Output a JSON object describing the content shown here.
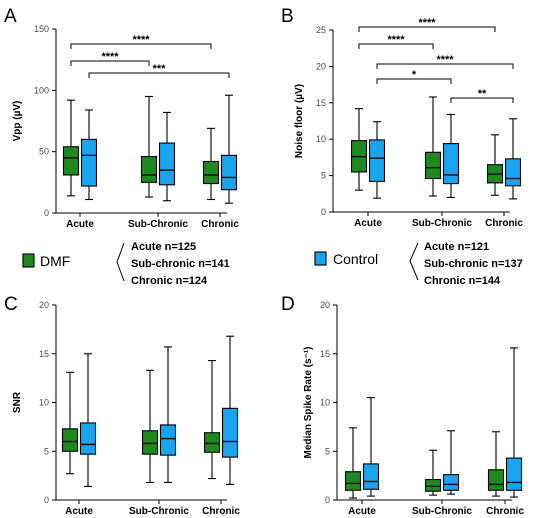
{
  "groups": [
    {
      "name": "DMF",
      "color": "#1e8a1e",
      "n_lines": [
        "Acute n=125",
        "Sub-chronic n=141",
        "Chronic n=124"
      ]
    },
    {
      "name": "Control",
      "color": "#1aa3ef",
      "n_lines": [
        "Acute n=121",
        "Sub-chronic n=137",
        "Chronic n=144"
      ]
    }
  ],
  "chart_data": [
    {
      "panel": "A",
      "type": "box",
      "ylabel": "Vpp  (µV)",
      "ylim": [
        0,
        150
      ],
      "yticks": [
        0,
        50,
        100,
        150
      ],
      "categories": [
        "Acute",
        "Sub-Chronic",
        "Chronic"
      ],
      "series": [
        {
          "name": "DMF",
          "boxes": [
            {
              "min": 14,
              "q1": 31,
              "median": 45,
              "q3": 54,
              "max": 92
            },
            {
              "min": 13,
              "q1": 25,
              "median": 31,
              "q3": 46,
              "max": 95
            },
            {
              "min": 11,
              "q1": 24,
              "median": 31,
              "q3": 42,
              "max": 69
            }
          ]
        },
        {
          "name": "Control",
          "boxes": [
            {
              "min": 11,
              "q1": 22,
              "median": 47,
              "q3": 60,
              "max": 84
            },
            {
              "min": 10,
              "q1": 23,
              "median": 35,
              "q3": 57,
              "max": 82
            },
            {
              "min": 8,
              "q1": 19,
              "median": 29,
              "q3": 47,
              "max": 96
            }
          ]
        }
      ],
      "significance": [
        {
          "label": "****",
          "from": [
            0,
            0
          ],
          "to": [
            2,
            0
          ]
        },
        {
          "label": "****",
          "from": [
            0,
            0
          ],
          "to": [
            1,
            0
          ]
        },
        {
          "label": "***",
          "from": [
            0,
            1
          ],
          "to": [
            2,
            1
          ]
        }
      ]
    },
    {
      "panel": "B",
      "type": "box",
      "ylabel": "Noise floor (µV)",
      "ylim": [
        0,
        25
      ],
      "yticks": [
        0,
        5,
        10,
        15,
        20,
        25
      ],
      "categories": [
        "Acute",
        "Sub-Chronic",
        "Chronic"
      ],
      "series": [
        {
          "name": "DMF",
          "boxes": [
            {
              "min": 3.0,
              "q1": 5.5,
              "median": 7.6,
              "q3": 9.8,
              "max": 14.2
            },
            {
              "min": 2.2,
              "q1": 4.6,
              "median": 6.1,
              "q3": 8.2,
              "max": 15.8
            },
            {
              "min": 2.3,
              "q1": 4.0,
              "median": 5.2,
              "q3": 6.5,
              "max": 10.6
            }
          ]
        },
        {
          "name": "Control",
          "boxes": [
            {
              "min": 1.9,
              "q1": 4.2,
              "median": 7.4,
              "q3": 9.9,
              "max": 12.4
            },
            {
              "min": 2.0,
              "q1": 3.9,
              "median": 5.1,
              "q3": 9.4,
              "max": 13.4
            },
            {
              "min": 1.8,
              "q1": 3.6,
              "median": 4.6,
              "q3": 7.3,
              "max": 12.8
            }
          ]
        }
      ],
      "significance": [
        {
          "label": "****",
          "from": [
            0,
            0
          ],
          "to": [
            2,
            0
          ]
        },
        {
          "label": "****",
          "from": [
            0,
            0
          ],
          "to": [
            1,
            0
          ]
        },
        {
          "label": "****",
          "from": [
            0,
            1
          ],
          "to": [
            2,
            1
          ]
        },
        {
          "label": "*",
          "from": [
            0,
            1
          ],
          "to": [
            1,
            1
          ]
        },
        {
          "label": "**",
          "from": [
            1,
            1
          ],
          "to": [
            2,
            1
          ]
        }
      ]
    },
    {
      "panel": "C",
      "type": "box",
      "ylabel": "SNR",
      "ylim": [
        0,
        20
      ],
      "yticks": [
        0,
        5,
        10,
        15,
        20
      ],
      "categories": [
        "Acute",
        "Sub-Chronic",
        "Chronic"
      ],
      "series": [
        {
          "name": "DMF",
          "boxes": [
            {
              "min": 2.7,
              "q1": 5.0,
              "median": 6.0,
              "q3": 7.3,
              "max": 13.1
            },
            {
              "min": 1.8,
              "q1": 4.7,
              "median": 5.8,
              "q3": 7.1,
              "max": 13.3
            },
            {
              "min": 2.2,
              "q1": 4.9,
              "median": 5.8,
              "q3": 6.9,
              "max": 14.3
            }
          ]
        },
        {
          "name": "Control",
          "boxes": [
            {
              "min": 1.4,
              "q1": 4.7,
              "median": 5.7,
              "q3": 7.9,
              "max": 15.0
            },
            {
              "min": 1.8,
              "q1": 4.6,
              "median": 6.3,
              "q3": 7.7,
              "max": 15.7
            },
            {
              "min": 1.6,
              "q1": 4.4,
              "median": 6.0,
              "q3": 9.4,
              "max": 16.8
            }
          ]
        }
      ]
    },
    {
      "panel": "D",
      "type": "box",
      "ylabel": "Median Spike Rate  (s⁻¹)",
      "ylim": [
        0,
        20
      ],
      "yticks": [
        0,
        5,
        10,
        15,
        20
      ],
      "categories": [
        "Acute",
        "Sub-Chronic",
        "Chronic"
      ],
      "series": [
        {
          "name": "DMF",
          "boxes": [
            {
              "min": 0.2,
              "q1": 1.0,
              "median": 1.7,
              "q3": 2.9,
              "max": 7.4
            },
            {
              "min": 0.5,
              "q1": 0.9,
              "median": 1.4,
              "q3": 2.1,
              "max": 5.1
            },
            {
              "min": 0.4,
              "q1": 1.0,
              "median": 1.6,
              "q3": 3.1,
              "max": 7.0
            }
          ]
        },
        {
          "name": "Control",
          "boxes": [
            {
              "min": 0.4,
              "q1": 1.1,
              "median": 1.9,
              "q3": 3.7,
              "max": 10.5
            },
            {
              "min": 0.6,
              "q1": 1.0,
              "median": 1.6,
              "q3": 2.6,
              "max": 7.1
            },
            {
              "min": 0.3,
              "q1": 1.0,
              "median": 1.8,
              "q3": 4.3,
              "max": 15.6
            }
          ]
        }
      ]
    }
  ]
}
